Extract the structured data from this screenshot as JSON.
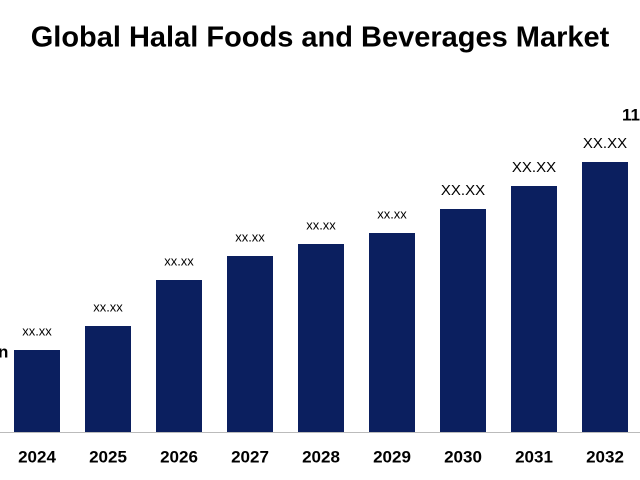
{
  "chart_data": {
    "type": "bar",
    "title": "Global Halal Foods and Beverages Market",
    "categories": [
      "2024",
      "2025",
      "2026",
      "2027",
      "2028",
      "2029",
      "2030",
      "2031",
      "2032"
    ],
    "values": [
      82,
      106,
      152,
      176,
      188,
      199,
      223,
      246,
      270
    ],
    "value_labels": [
      "xx.xx",
      "xx.xx",
      "xx.xx",
      "xx.xx",
      "xx.xx",
      "xx.xx",
      "XX.XX",
      "XX.XX",
      "XX.XX"
    ],
    "color": "#0b1f5f",
    "annotations": [
      "n",
      "11"
    ]
  }
}
